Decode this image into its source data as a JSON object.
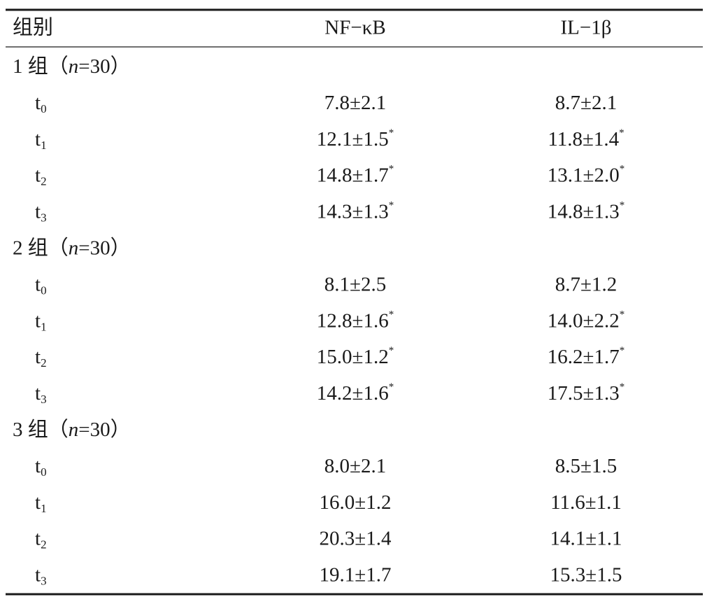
{
  "table": {
    "header": [
      "组别",
      "NF−κB",
      "IL−1β"
    ],
    "groups": [
      {
        "label": {
          "prefix": "1 组（",
          "n": "n",
          "suffix": "=30）"
        },
        "rows": [
          {
            "time": {
              "t": "t",
              "sub": "0"
            },
            "cells": [
              {
                "text": "7.8±2.1"
              },
              {
                "text": "8.7±2.1"
              }
            ]
          },
          {
            "time": {
              "t": "t",
              "sub": "1"
            },
            "cells": [
              {
                "text": "12.1±1.5",
                "sup": "*"
              },
              {
                "text": "11.8±1.4",
                "sup": "*"
              }
            ]
          },
          {
            "time": {
              "t": "t",
              "sub": "2"
            },
            "cells": [
              {
                "text": "14.8±1.7",
                "sup": "*"
              },
              {
                "text": "13.1±2.0",
                "sup": "*"
              }
            ]
          },
          {
            "time": {
              "t": "t",
              "sub": "3"
            },
            "cells": [
              {
                "text": "14.3±1.3",
                "sup": "*"
              },
              {
                "text": "14.8±1.3",
                "sup": "*"
              }
            ]
          }
        ]
      },
      {
        "label": {
          "prefix": "2 组（",
          "n": "n",
          "suffix": "=30）"
        },
        "rows": [
          {
            "time": {
              "t": "t",
              "sub": "0"
            },
            "cells": [
              {
                "text": "8.1±2.5"
              },
              {
                "text": "8.7±1.2"
              }
            ]
          },
          {
            "time": {
              "t": "t",
              "sub": "1"
            },
            "cells": [
              {
                "text": "12.8±1.6",
                "sup": "*"
              },
              {
                "text": "14.0±2.2",
                "sup": "*"
              }
            ]
          },
          {
            "time": {
              "t": "t",
              "sub": "2"
            },
            "cells": [
              {
                "text": "15.0±1.2",
                "sup": "*"
              },
              {
                "text": "16.2±1.7",
                "sup": "*"
              }
            ]
          },
          {
            "time": {
              "t": "t",
              "sub": "3"
            },
            "cells": [
              {
                "text": "14.2±1.6",
                "sup": "*"
              },
              {
                "text": "17.5±1.3",
                "sup": "*"
              }
            ]
          }
        ]
      },
      {
        "label": {
          "prefix": "3 组（",
          "n": "n",
          "suffix": "=30）"
        },
        "rows": [
          {
            "time": {
              "t": "t",
              "sub": "0"
            },
            "cells": [
              {
                "text": "8.0±2.1"
              },
              {
                "text": "8.5±1.5"
              }
            ]
          },
          {
            "time": {
              "t": "t",
              "sub": "1"
            },
            "cells": [
              {
                "text": "16.0±1.2"
              },
              {
                "text": "11.6±1.1"
              }
            ]
          },
          {
            "time": {
              "t": "t",
              "sub": "2"
            },
            "cells": [
              {
                "text": "20.3±1.4"
              },
              {
                "text": "14.1±1.1"
              }
            ]
          },
          {
            "time": {
              "t": "t",
              "sub": "3"
            },
            "cells": [
              {
                "text": "19.1±1.7"
              },
              {
                "text": "15.3±1.5"
              }
            ]
          }
        ]
      }
    ]
  }
}
